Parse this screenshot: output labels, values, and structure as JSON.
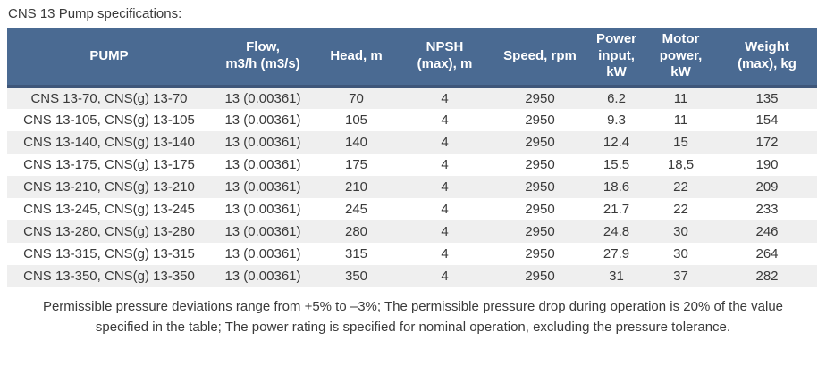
{
  "title": "CNS 13 Pump specifications:",
  "colors": {
    "header_bg": "#4a6a92",
    "header_border": "#3e5679",
    "row_stripe": "#efefef",
    "text": "#3a3a3a",
    "header_text": "#ffffff"
  },
  "table": {
    "headers": [
      "PUMP",
      "Flow,\nm3/h (m3/s)",
      "Head, m",
      "NPSH\n(max), m",
      "Speed, rpm",
      "Power\ninput,\nkW",
      "Motor\npower,\nkW",
      "Weight\n(max), kg"
    ],
    "rows": [
      [
        "CNS 13-70, CNS(g) 13-70",
        "13 (0.00361)",
        "70",
        "4",
        "2950",
        "6.2",
        "11",
        "135"
      ],
      [
        "CNS 13-105, CNS(g) 13-105",
        "13 (0.00361)",
        "105",
        "4",
        "2950",
        "9.3",
        "11",
        "154"
      ],
      [
        "CNS 13-140, CNS(g) 13-140",
        "13 (0.00361)",
        "140",
        "4",
        "2950",
        "12.4",
        "15",
        "172"
      ],
      [
        "CNS 13-175, CNS(g) 13-175",
        "13 (0.00361)",
        "175",
        "4",
        "2950",
        "15.5",
        "18,5",
        "190"
      ],
      [
        "CNS 13-210, CNS(g) 13-210",
        "13 (0.00361)",
        "210",
        "4",
        "2950",
        "18.6",
        "22",
        "209"
      ],
      [
        "CNS 13-245, CNS(g) 13-245",
        "13 (0.00361)",
        "245",
        "4",
        "2950",
        "21.7",
        "22",
        "233"
      ],
      [
        "CNS 13-280, CNS(g) 13-280",
        "13 (0.00361)",
        "280",
        "4",
        "2950",
        "24.8",
        "30",
        "246"
      ],
      [
        "CNS 13-315, CNS(g) 13-315",
        "13 (0.00361)",
        "315",
        "4",
        "2950",
        "27.9",
        "30",
        "264"
      ],
      [
        "CNS 13-350, CNS(g) 13-350",
        "13 (0.00361)",
        "350",
        "4",
        "2950",
        "31",
        "37",
        "282"
      ]
    ]
  },
  "footnote": "Permissible pressure deviations range from +5% to –3%; The permissible pressure drop during operation is 20% of the value specified in the table; The power rating is specified for nominal operation, excluding the pressure tolerance."
}
